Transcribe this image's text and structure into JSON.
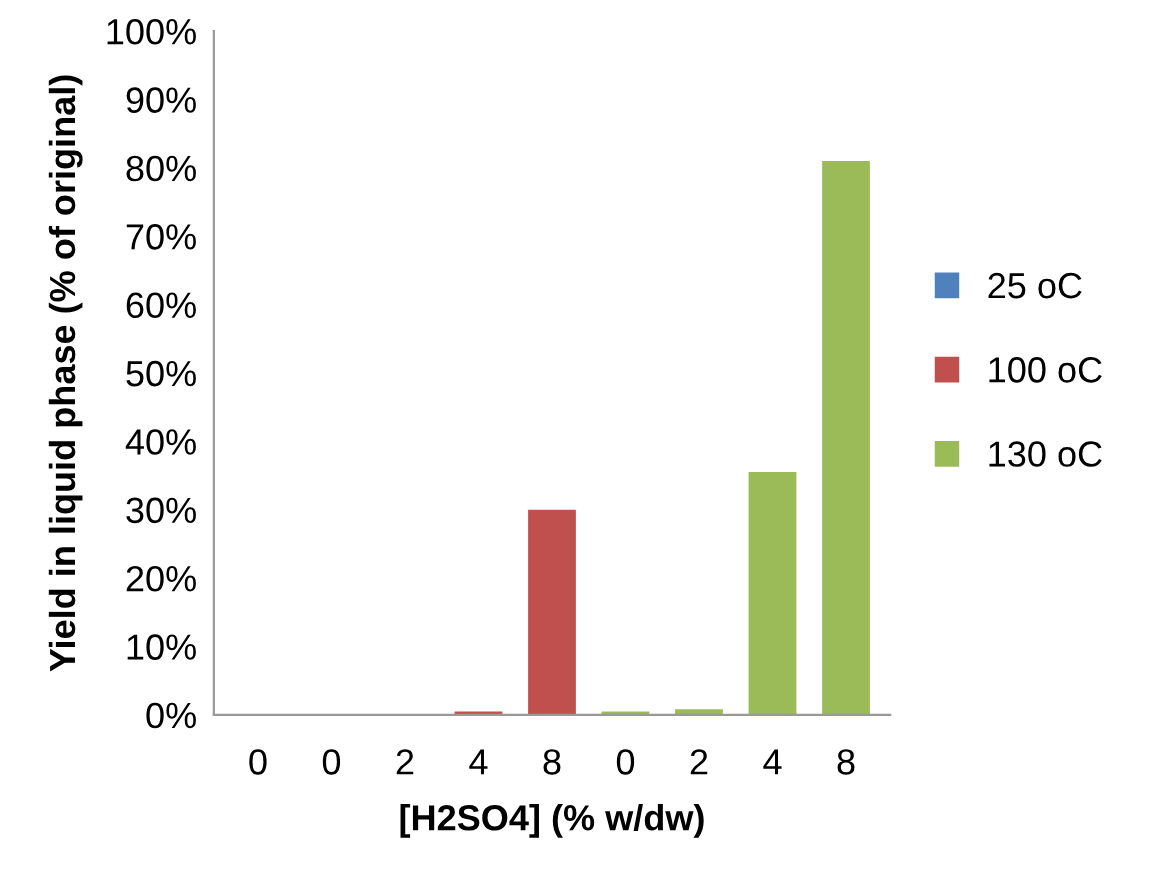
{
  "chart_data": {
    "type": "bar",
    "xlabel": "[H2SO4] (% w/dw)",
    "ylabel": "Yield in liquid phase (% of original)",
    "categories": [
      "0",
      "0",
      "2",
      "4",
      "8",
      "0",
      "2",
      "4",
      "8"
    ],
    "series": [
      {
        "name": "25 oC",
        "color": "#4f81bd",
        "values": [
          0,
          null,
          null,
          null,
          null,
          null,
          null,
          null,
          null
        ]
      },
      {
        "name": "100 oC",
        "color": "#c0504d",
        "values": [
          null,
          0,
          0,
          0.5,
          30,
          null,
          null,
          null,
          null
        ]
      },
      {
        "name": "130 oC",
        "color": "#9bbb59",
        "values": [
          null,
          null,
          null,
          null,
          null,
          0.5,
          0.8,
          35.5,
          81
        ]
      }
    ],
    "ylim": [
      0,
      100
    ],
    "yticks": [
      {
        "value": 0,
        "label": "0%"
      },
      {
        "value": 10,
        "label": "10%"
      },
      {
        "value": 20,
        "label": "20%"
      },
      {
        "value": 30,
        "label": "30%"
      },
      {
        "value": 40,
        "label": "40%"
      },
      {
        "value": 50,
        "label": "50%"
      },
      {
        "value": 60,
        "label": "60%"
      },
      {
        "value": 70,
        "label": "70%"
      },
      {
        "value": 80,
        "label": "80%"
      },
      {
        "value": 90,
        "label": "90%"
      },
      {
        "value": 100,
        "label": "100%"
      }
    ],
    "grid": false,
    "legend": "right"
  }
}
